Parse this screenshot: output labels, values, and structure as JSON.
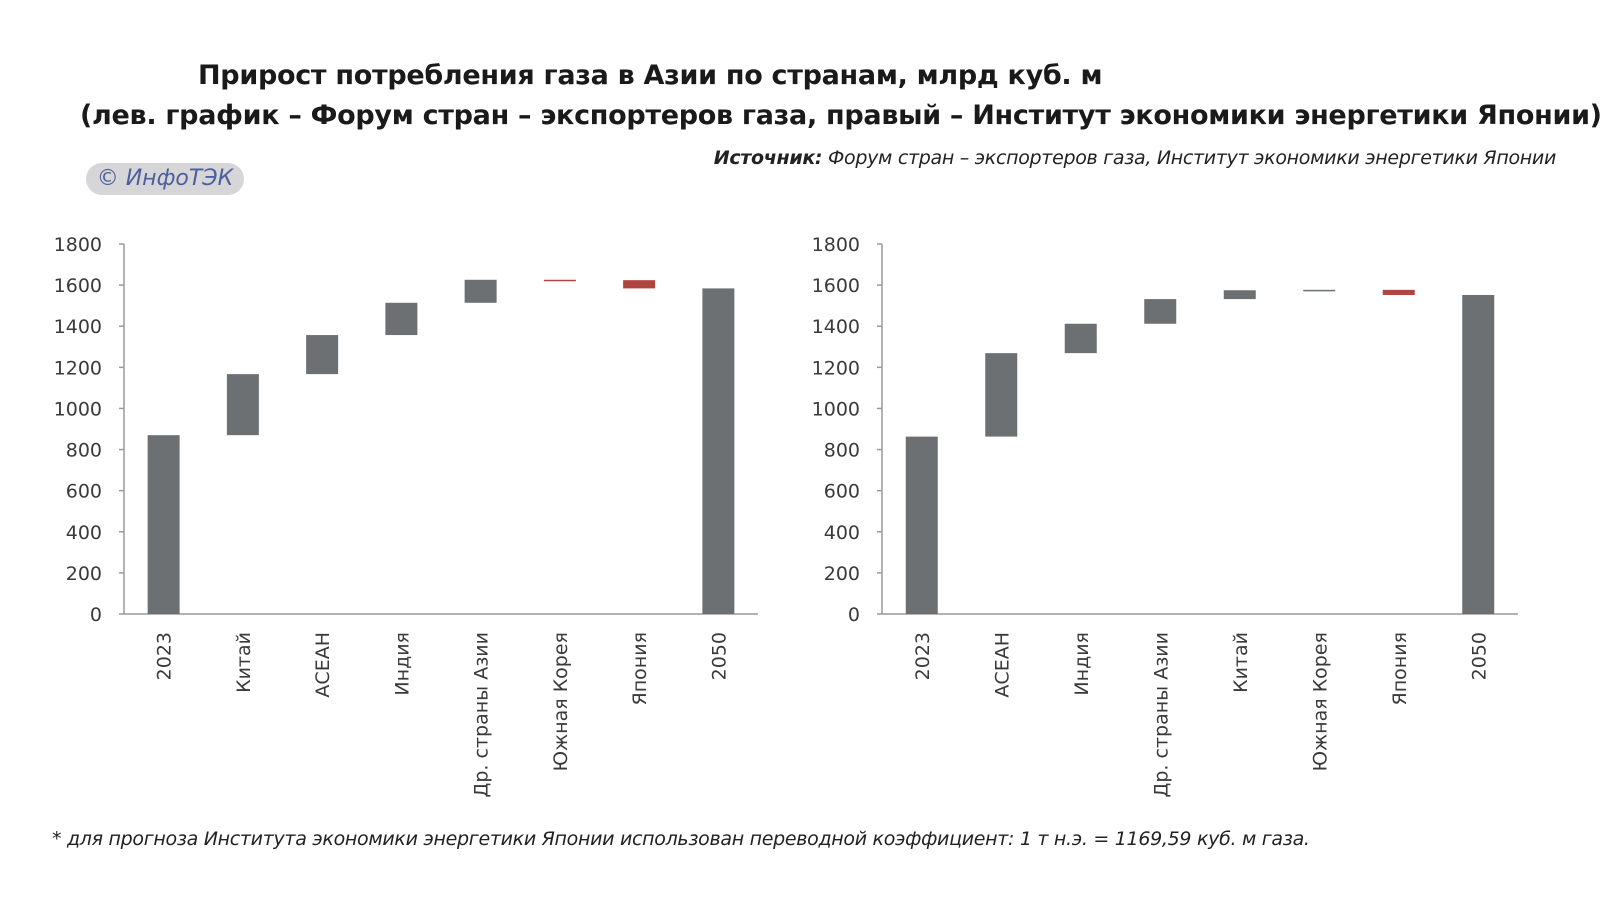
{
  "title_line1": "Прирост потребления газа в Азии по странам, млрд куб. м",
  "title_line2": "(лев. график – Форум стран – экспортеров газа, правый – Институт экономики энергетики Японии)",
  "source_label": "Источник:",
  "source_text": " Форум стран – экспортеров газа, Институт экономики энергетики Японии",
  "logo_text": "© ИнфоТЭК",
  "footnote": "* для прогноза Института экономики энергетики Японии использован переводной коэффициент: 1 т н.э. = 1169,59 куб. м газа.",
  "colors": {
    "bar": "#6d7073",
    "negative": "#b0453f",
    "axis": "#9a9a9a"
  },
  "chart_data": [
    {
      "type": "bar",
      "subtype": "waterfall",
      "title": "Форум стран – экспортеров газа",
      "categories": [
        "2023",
        "Китай",
        "АСЕАН",
        "Индия",
        "Др. страны Азии",
        "Южная Корея",
        "Япония",
        "2050"
      ],
      "values": [
        870,
        297,
        190,
        157,
        112,
        -2,
        -40,
        1584
      ],
      "is_total": [
        true,
        false,
        false,
        false,
        false,
        false,
        false,
        true
      ],
      "ylim": [
        0,
        1800
      ],
      "yticks": [
        0,
        200,
        400,
        600,
        800,
        1000,
        1200,
        1400,
        1600,
        1800
      ]
    },
    {
      "type": "bar",
      "subtype": "waterfall",
      "title": "Институт экономики энергетики Японии",
      "categories": [
        "2023",
        "АСЕАН",
        "Индия",
        "Др. страны Азии",
        "Китай",
        "Южная Корея",
        "Япония",
        "2050"
      ],
      "values": [
        863,
        406,
        143,
        120,
        43,
        2,
        -25,
        1552
      ],
      "is_total": [
        true,
        false,
        false,
        false,
        false,
        false,
        false,
        true
      ],
      "ylim": [
        0,
        1800
      ],
      "yticks": [
        0,
        200,
        400,
        600,
        800,
        1000,
        1200,
        1400,
        1600,
        1800
      ]
    }
  ]
}
